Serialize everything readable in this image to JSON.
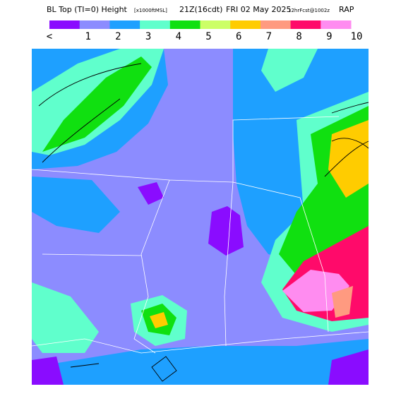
{
  "header": {
    "title": "BL Top (TI=0) Height",
    "units": "[x1000ftMSL]",
    "valid_time": "21Z(16cdt)",
    "date": "FRI 02 May 2025",
    "forecast": "12hrFcst@1002z",
    "model": "RAP"
  },
  "color_scale": {
    "labels": [
      "<",
      "1",
      "2",
      "3",
      "4",
      "5",
      "6",
      "7",
      "8",
      "9",
      "10"
    ],
    "colors": [
      "#8a0cff",
      "#8c8cff",
      "#1ea0ff",
      "#60ffcc",
      "#10e010",
      "#ccff66",
      "#ffcc00",
      "#ff9a80",
      "#ff0a6a",
      "#ff8cf0"
    ]
  }
}
